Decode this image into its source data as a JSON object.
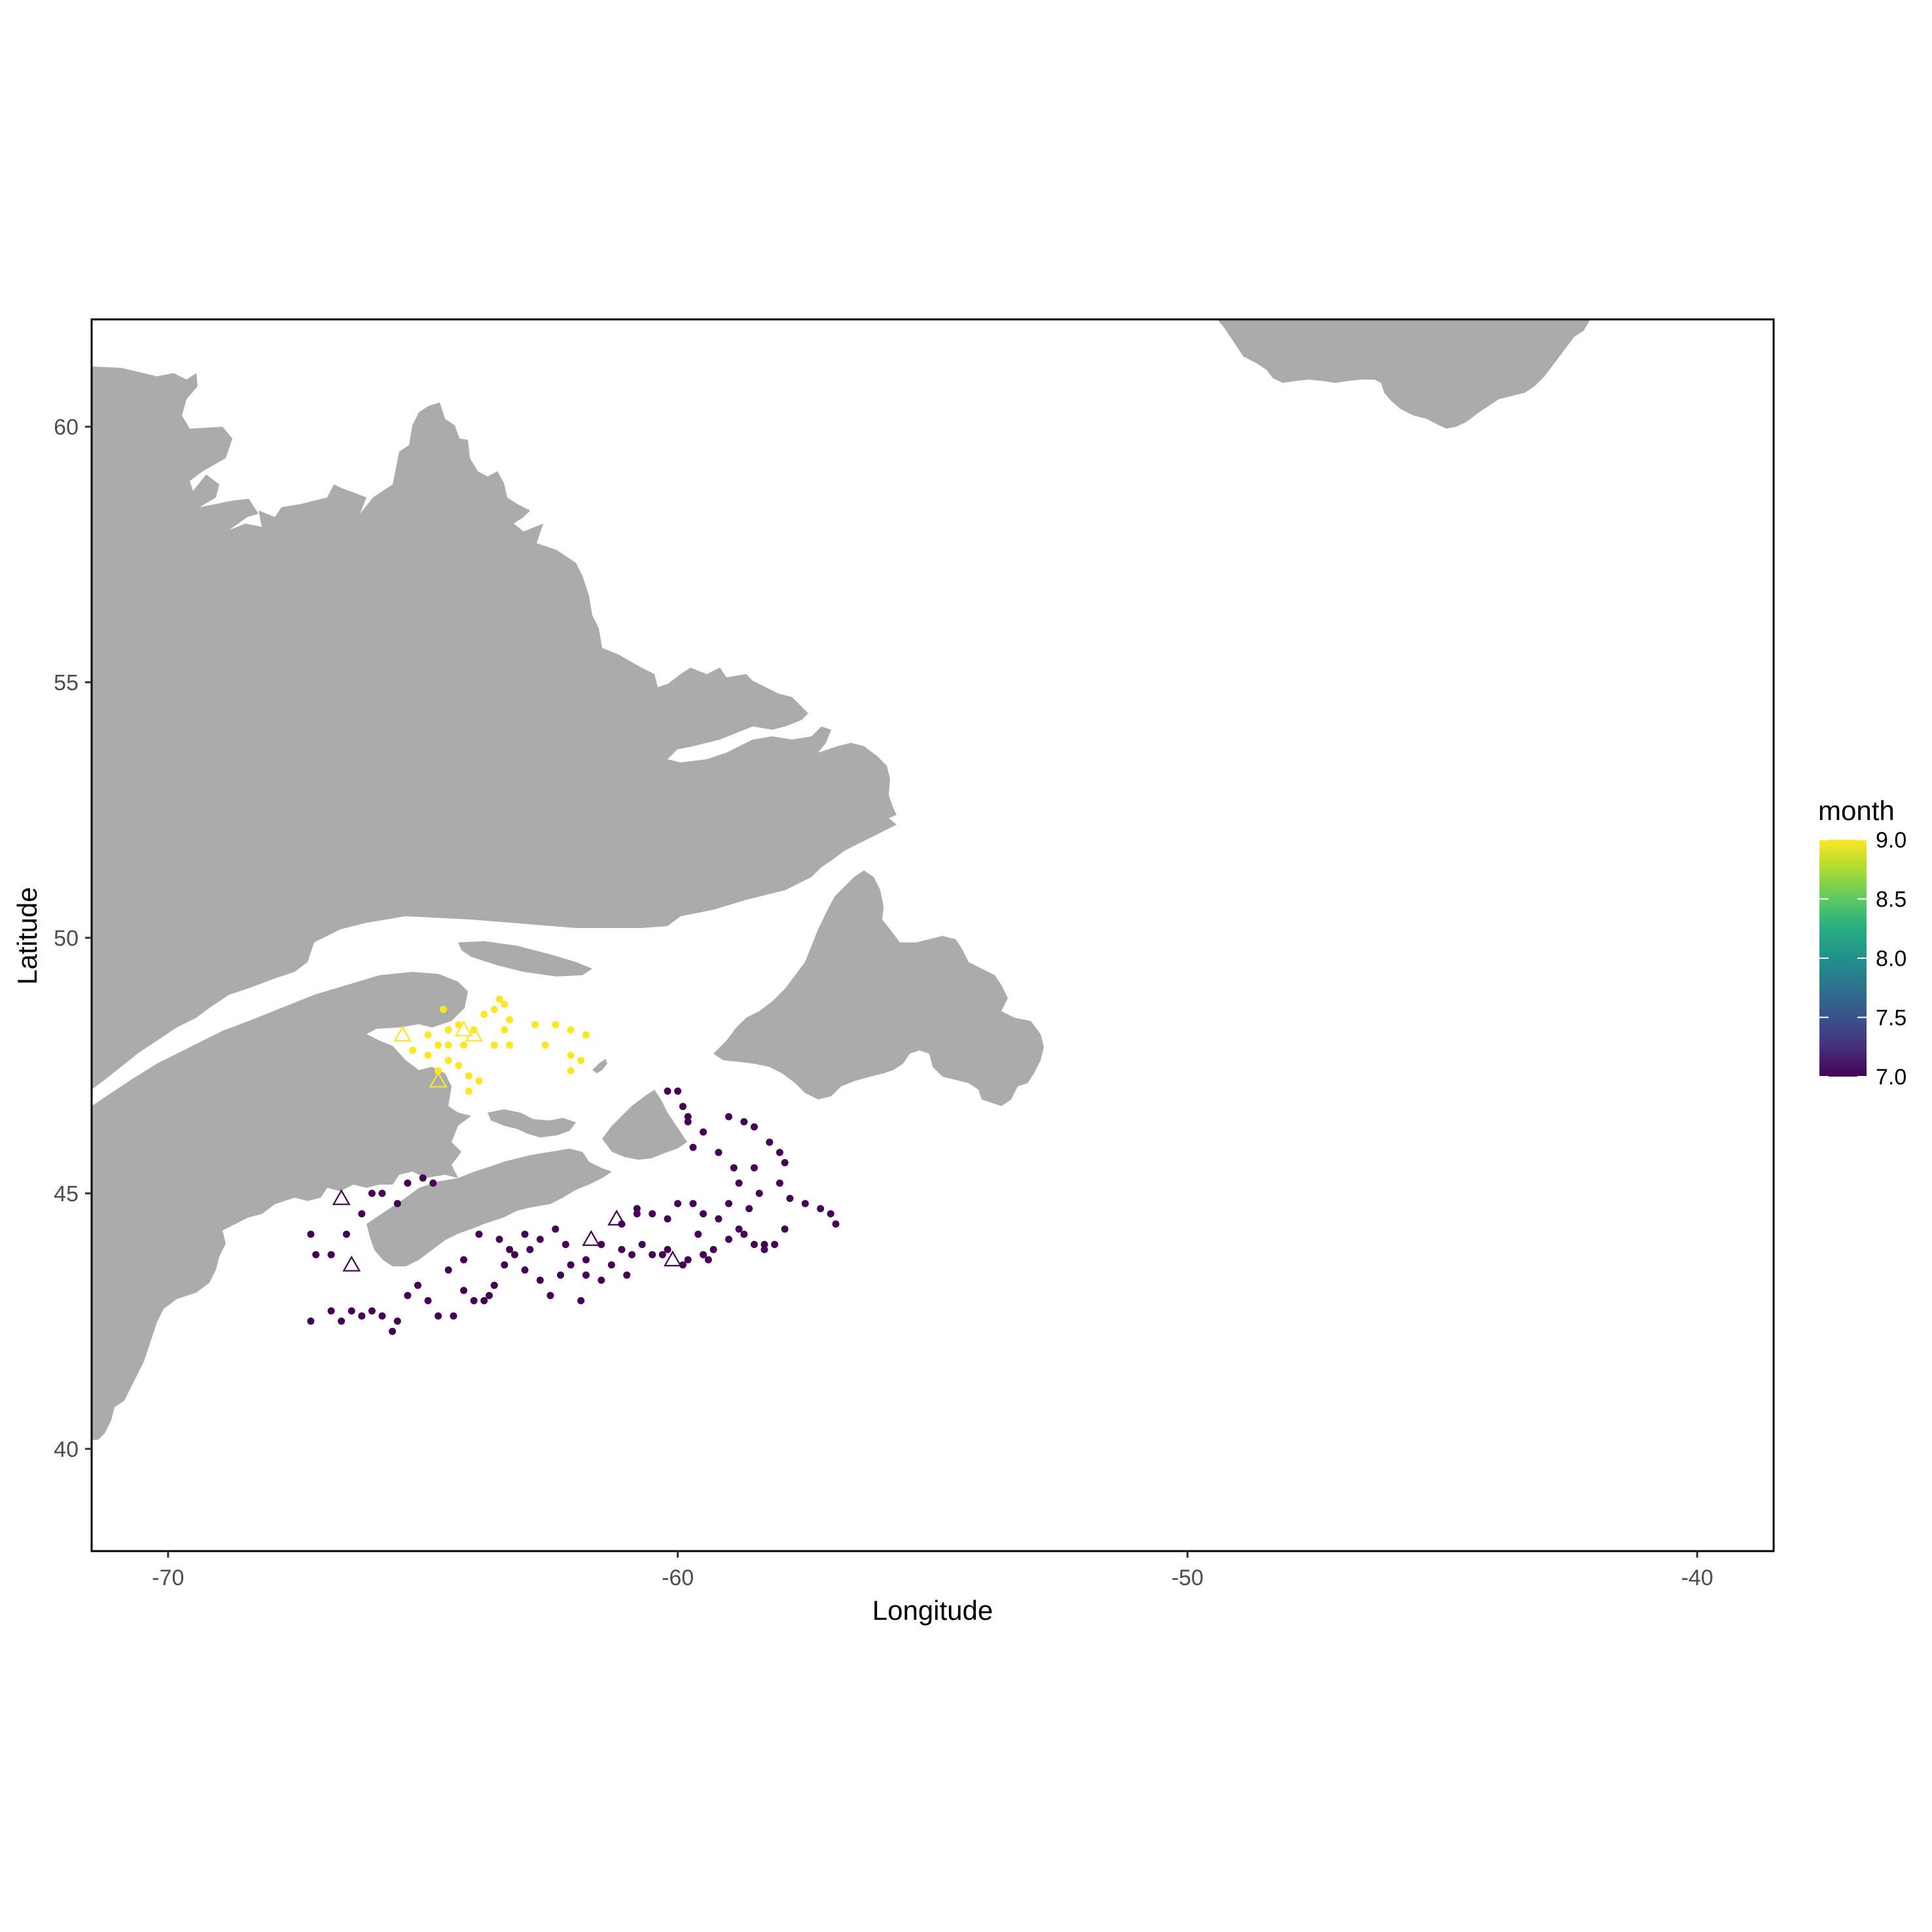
{
  "chart_data": {
    "type": "scatter",
    "title": "",
    "xlabel": "Longitude",
    "ylabel": "Latitude",
    "xlim": [
      -71.5,
      -38.5
    ],
    "ylim": [
      38.0,
      62.1
    ],
    "x_ticks": [
      -70,
      -60,
      -50,
      -40
    ],
    "y_ticks": [
      40,
      45,
      50,
      55,
      60
    ],
    "x_tick_labels": [
      "-70",
      "-60",
      "-50",
      "-40"
    ],
    "y_tick_labels": [
      "40",
      "45",
      "50",
      "55",
      "60"
    ],
    "grid": false,
    "land_color": "#ababab",
    "legend": {
      "title": "month",
      "position": "right",
      "type": "colorbar",
      "range": [
        7.0,
        9.0
      ],
      "ticks": [
        7.0,
        7.5,
        8.0,
        8.5,
        9.0
      ],
      "tick_labels": [
        "7.0",
        "7.5",
        "8.0",
        "8.5",
        "9.0"
      ],
      "palette": [
        "#440154",
        "#3b528b",
        "#21918c",
        "#5ec962",
        "#fde725"
      ]
    },
    "series": [
      {
        "month": 9,
        "color": "#fde725",
        "marker": "circle",
        "points": [
          [
            -64.9,
            48.1
          ],
          [
            -64.7,
            47.9
          ],
          [
            -64.5,
            48.2
          ],
          [
            -64.3,
            48.3
          ],
          [
            -64.0,
            48.2
          ],
          [
            -63.8,
            48.5
          ],
          [
            -63.6,
            48.6
          ],
          [
            -63.5,
            48.8
          ],
          [
            -63.4,
            48.7
          ],
          [
            -63.3,
            48.4
          ],
          [
            -63.4,
            48.2
          ],
          [
            -63.6,
            47.9
          ],
          [
            -63.3,
            47.9
          ],
          [
            -64.2,
            47.9
          ],
          [
            -64.5,
            47.6
          ],
          [
            -64.3,
            47.5
          ],
          [
            -64.1,
            47.3
          ],
          [
            -63.9,
            47.2
          ],
          [
            -64.1,
            47.0
          ],
          [
            -64.5,
            47.9
          ],
          [
            -65.2,
            47.8
          ],
          [
            -62.8,
            48.3
          ],
          [
            -62.4,
            48.3
          ],
          [
            -62.1,
            48.2
          ],
          [
            -61.8,
            48.1
          ],
          [
            -62.6,
            47.9
          ],
          [
            -62.1,
            47.7
          ],
          [
            -62.1,
            47.4
          ],
          [
            -61.9,
            47.6
          ],
          [
            -64.7,
            47.4
          ],
          [
            -64.6,
            48.6
          ],
          [
            -64.9,
            47.7
          ]
        ]
      },
      {
        "month": 9,
        "color": "#fde725",
        "marker": "triangle",
        "points": [
          [
            -65.4,
            48.1
          ],
          [
            -64.2,
            48.2
          ],
          [
            -64.0,
            48.1
          ],
          [
            -64.7,
            47.2
          ]
        ]
      },
      {
        "month": 7,
        "color": "#440154",
        "marker": "circle",
        "points": [
          [
            -60.2,
            47.0
          ],
          [
            -60.0,
            47.0
          ],
          [
            -59.9,
            46.7
          ],
          [
            -59.8,
            46.5
          ],
          [
            -59.8,
            46.4
          ],
          [
            -59.5,
            46.2
          ],
          [
            -59.0,
            46.5
          ],
          [
            -58.7,
            46.4
          ],
          [
            -58.5,
            46.3
          ],
          [
            -59.7,
            45.9
          ],
          [
            -59.2,
            45.8
          ],
          [
            -58.9,
            45.5
          ],
          [
            -58.5,
            45.5
          ],
          [
            -58.2,
            46.0
          ],
          [
            -58.0,
            45.8
          ],
          [
            -57.9,
            45.6
          ],
          [
            -58.0,
            45.2
          ],
          [
            -58.4,
            45.0
          ],
          [
            -58.8,
            45.2
          ],
          [
            -57.8,
            44.9
          ],
          [
            -57.5,
            44.8
          ],
          [
            -57.2,
            44.7
          ],
          [
            -57.0,
            44.6
          ],
          [
            -56.9,
            44.4
          ],
          [
            -57.9,
            44.3
          ],
          [
            -58.3,
            44.0
          ],
          [
            -58.5,
            44.0
          ],
          [
            -58.3,
            43.9
          ],
          [
            -58.7,
            44.2
          ],
          [
            -59.0,
            44.1
          ],
          [
            -59.3,
            43.9
          ],
          [
            -59.5,
            43.8
          ],
          [
            -59.8,
            43.7
          ],
          [
            -60.2,
            43.9
          ],
          [
            -60.5,
            43.8
          ],
          [
            -60.7,
            44.0
          ],
          [
            -60.9,
            43.8
          ],
          [
            -61.1,
            43.9
          ],
          [
            -61.3,
            43.6
          ],
          [
            -61.5,
            43.3
          ],
          [
            -61.8,
            43.4
          ],
          [
            -62.1,
            43.6
          ],
          [
            -62.3,
            43.4
          ],
          [
            -62.5,
            43.0
          ],
          [
            -62.7,
            43.3
          ],
          [
            -63.0,
            43.5
          ],
          [
            -63.2,
            43.8
          ],
          [
            -63.4,
            43.6
          ],
          [
            -63.6,
            43.2
          ],
          [
            -63.8,
            42.9
          ],
          [
            -64.0,
            42.9
          ],
          [
            -64.2,
            43.1
          ],
          [
            -64.4,
            42.6
          ],
          [
            -64.7,
            42.6
          ],
          [
            -64.9,
            42.9
          ],
          [
            -65.1,
            43.2
          ],
          [
            -65.3,
            43.0
          ],
          [
            -65.5,
            42.5
          ],
          [
            -65.6,
            42.3
          ],
          [
            -65.8,
            42.6
          ],
          [
            -66.0,
            42.7
          ],
          [
            -66.2,
            42.6
          ],
          [
            -66.4,
            42.7
          ],
          [
            -66.6,
            42.5
          ],
          [
            -66.8,
            42.7
          ],
          [
            -67.2,
            42.5
          ],
          [
            -67.1,
            43.8
          ],
          [
            -67.2,
            44.2
          ],
          [
            -66.8,
            43.8
          ],
          [
            -66.5,
            44.2
          ],
          [
            -66.2,
            44.6
          ],
          [
            -66.0,
            45.0
          ],
          [
            -65.8,
            45.0
          ],
          [
            -65.5,
            44.8
          ],
          [
            -65.3,
            45.2
          ],
          [
            -65.0,
            45.3
          ],
          [
            -64.8,
            45.2
          ],
          [
            -63.9,
            44.2
          ],
          [
            -63.5,
            44.1
          ],
          [
            -63.3,
            43.9
          ],
          [
            -63.0,
            44.2
          ],
          [
            -62.7,
            44.1
          ],
          [
            -62.2,
            44.0
          ],
          [
            -61.8,
            43.7
          ],
          [
            -61.5,
            44.0
          ],
          [
            -61.1,
            44.4
          ],
          [
            -60.8,
            44.6
          ],
          [
            -60.5,
            44.6
          ],
          [
            -60.2,
            44.5
          ],
          [
            -60.0,
            44.8
          ],
          [
            -59.7,
            44.8
          ],
          [
            -59.5,
            44.6
          ],
          [
            -59.2,
            44.5
          ],
          [
            -59.0,
            44.8
          ],
          [
            -58.8,
            44.3
          ],
          [
            -58.6,
            44.7
          ],
          [
            -62.9,
            43.9
          ],
          [
            -62.4,
            44.3
          ],
          [
            -61.0,
            43.4
          ],
          [
            -64.5,
            43.5
          ],
          [
            -64.2,
            43.7
          ],
          [
            -63.7,
            43.0
          ],
          [
            -60.3,
            43.8
          ],
          [
            -59.6,
            44.2
          ],
          [
            -59.9,
            43.6
          ],
          [
            -59.4,
            43.7
          ],
          [
            -58.1,
            44.0
          ],
          [
            -61.9,
            42.9
          ],
          [
            -60.8,
            44.7
          ]
        ]
      },
      {
        "month": 7,
        "color": "#440154",
        "marker": "triangle",
        "points": [
          [
            -66.6,
            44.9
          ],
          [
            -66.4,
            43.6
          ],
          [
            -61.2,
            44.5
          ],
          [
            -61.7,
            44.1
          ],
          [
            -60.1,
            43.7
          ]
        ]
      }
    ]
  }
}
